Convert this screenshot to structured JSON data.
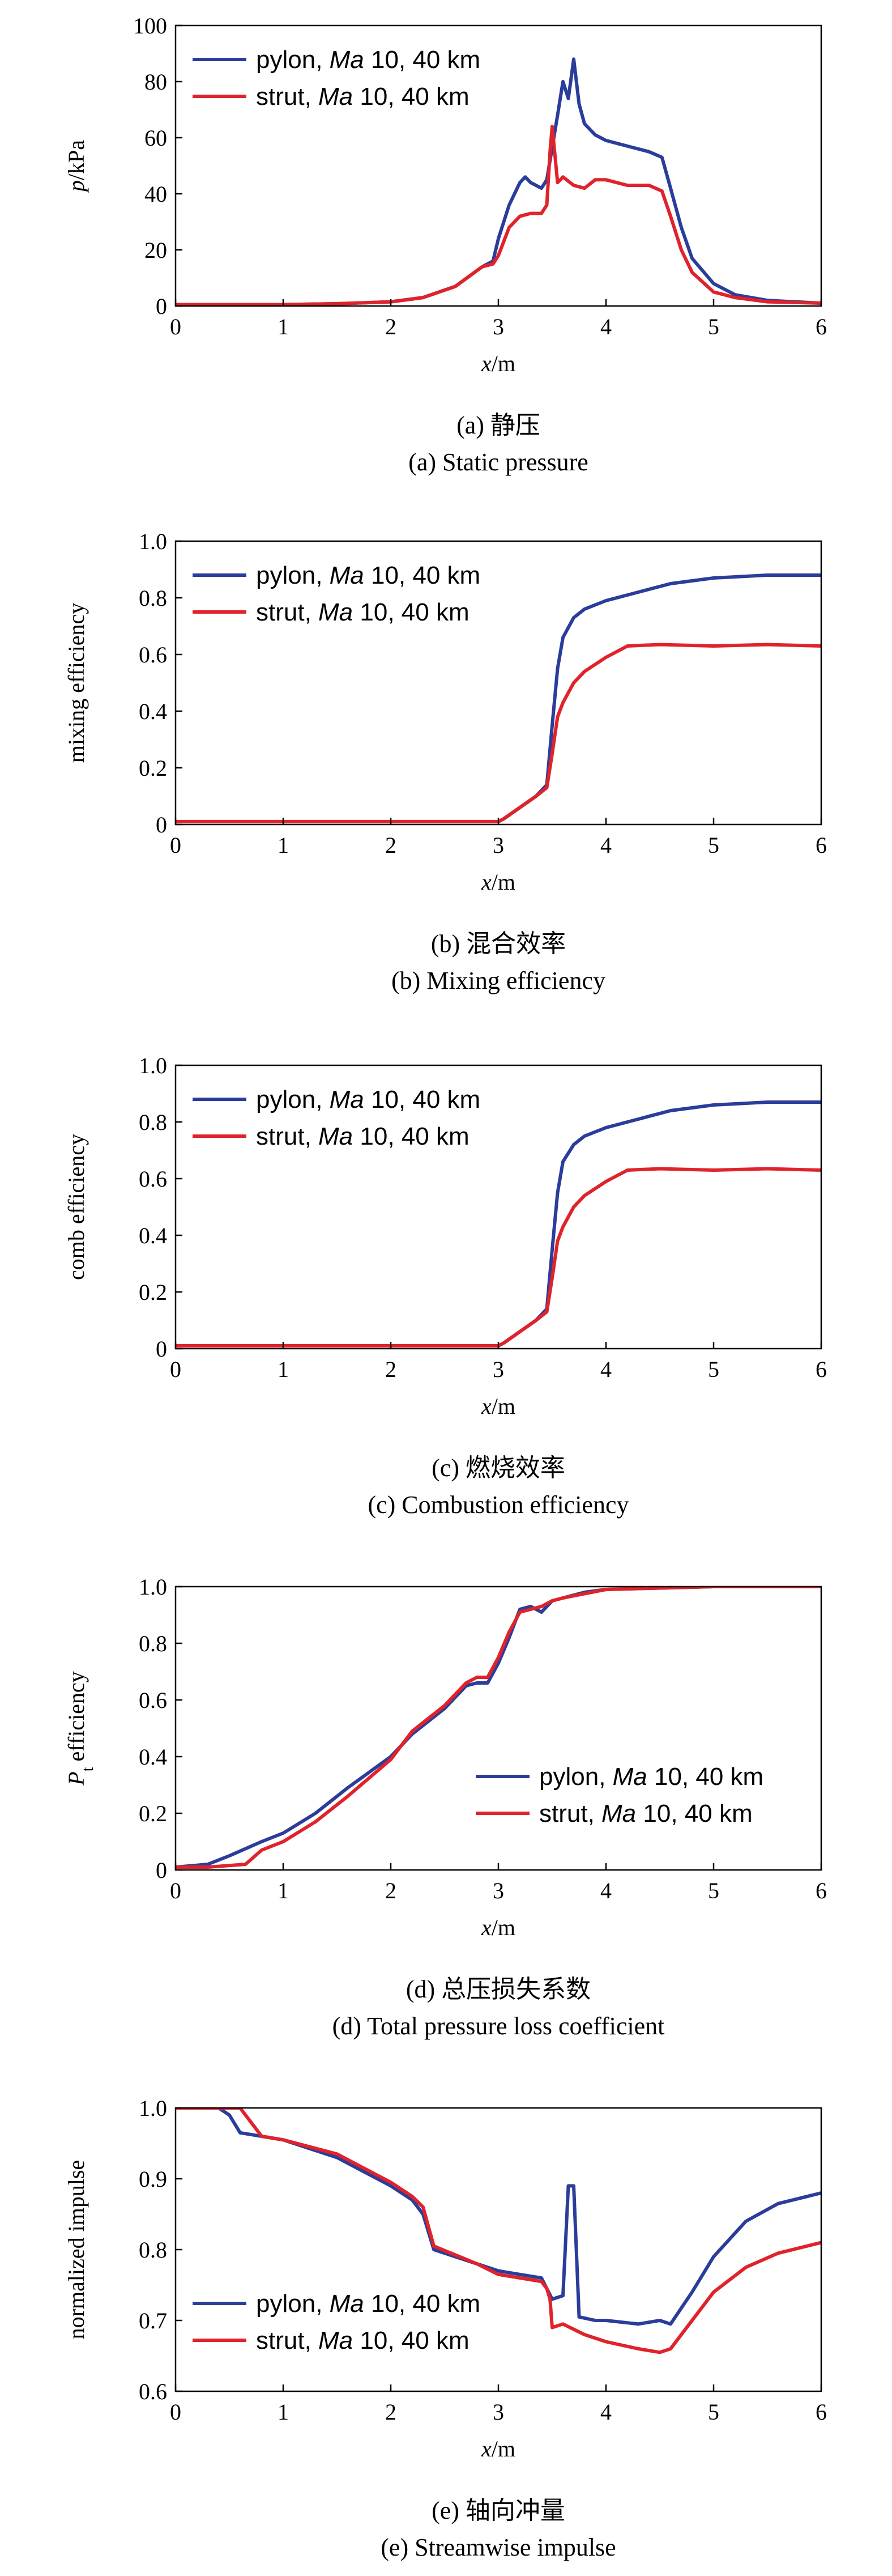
{
  "figure": {
    "series_style": {
      "pylon": {
        "label": "pylon, ",
        "italic": "Ma",
        "suffix": " 10, 40 km",
        "color": "#2b3d9a"
      },
      "strut": {
        "label": "strut, ",
        "italic": "Ma",
        "suffix": " 10, 40 km",
        "color": "#e0232b"
      }
    }
  },
  "chart_data": [
    {
      "type": "line",
      "panel": "a",
      "ylabel_italic": "p",
      "ylabel_rest": "/kPa",
      "xlabel_italic": "x",
      "xlabel_rest": "/m",
      "xlim": [
        0,
        6
      ],
      "ylim": [
        0,
        100
      ],
      "x_ticks": [
        "0",
        "1",
        "2",
        "3",
        "4",
        "5",
        "6"
      ],
      "y_ticks": [
        "0",
        "20",
        "40",
        "60",
        "80",
        "100"
      ],
      "caption_cn": "(a) 静压",
      "caption_en": "(a) Static pressure",
      "legend_position": "top-left",
      "series": [
        {
          "name": "pylon, Ma 10, 40 km",
          "x": [
            0,
            1,
            1.5,
            2,
            2.3,
            2.6,
            2.85,
            2.95,
            3.0,
            3.1,
            3.2,
            3.25,
            3.3,
            3.4,
            3.45,
            3.55,
            3.6,
            3.65,
            3.7,
            3.75,
            3.8,
            3.9,
            4.0,
            4.2,
            4.4,
            4.52,
            4.6,
            4.7,
            4.8,
            5.0,
            5.2,
            5.5,
            6.0
          ],
          "y": [
            0.5,
            0.5,
            0.8,
            1.5,
            3,
            7,
            14,
            16,
            24,
            36,
            44,
            46,
            44,
            42,
            45,
            68,
            80,
            74,
            88,
            72,
            65,
            61,
            59,
            57,
            55,
            53,
            42,
            28,
            17,
            8,
            4,
            2,
            1
          ]
        },
        {
          "name": "strut, Ma 10, 40 km",
          "x": [
            0,
            1,
            1.5,
            2,
            2.3,
            2.6,
            2.85,
            2.95,
            3.0,
            3.1,
            3.2,
            3.3,
            3.4,
            3.45,
            3.48,
            3.5,
            3.55,
            3.6,
            3.7,
            3.8,
            3.9,
            4.0,
            4.2,
            4.4,
            4.52,
            4.6,
            4.7,
            4.8,
            5.0,
            5.2,
            5.5,
            6.0
          ],
          "y": [
            0.5,
            0.5,
            0.8,
            1.5,
            3,
            7,
            14,
            15,
            18,
            28,
            32,
            33,
            33,
            36,
            55,
            64,
            44,
            46,
            43,
            42,
            45,
            45,
            43,
            43,
            41,
            32,
            20,
            12,
            5,
            3,
            1.5,
            1
          ]
        }
      ]
    },
    {
      "type": "line",
      "panel": "b",
      "ylabel_italic": "",
      "ylabel_rest": "mixing efficiency",
      "xlabel_italic": "x",
      "xlabel_rest": "/m",
      "xlim": [
        0,
        6
      ],
      "ylim": [
        0,
        1.0
      ],
      "x_ticks": [
        "0",
        "1",
        "2",
        "3",
        "4",
        "5",
        "6"
      ],
      "y_ticks": [
        "0",
        "0.2",
        "0.4",
        "0.6",
        "0.8",
        "1.0"
      ],
      "caption_cn": "(b) 混合效率",
      "caption_en": "(b) Mixing efficiency",
      "legend_position": "top-left",
      "series": [
        {
          "name": "pylon, Ma 10, 40 km",
          "x": [
            0,
            3.0,
            3.05,
            3.2,
            3.35,
            3.45,
            3.5,
            3.55,
            3.6,
            3.7,
            3.8,
            4.0,
            4.3,
            4.6,
            5.0,
            5.5,
            6.0
          ],
          "y": [
            0.01,
            0.01,
            0.02,
            0.06,
            0.1,
            0.14,
            0.35,
            0.55,
            0.66,
            0.73,
            0.76,
            0.79,
            0.82,
            0.85,
            0.87,
            0.88,
            0.88
          ]
        },
        {
          "name": "strut, Ma 10, 40 km",
          "x": [
            0,
            3.0,
            3.05,
            3.2,
            3.35,
            3.45,
            3.5,
            3.55,
            3.6,
            3.7,
            3.8,
            4.0,
            4.2,
            4.5,
            5.0,
            5.5,
            6.0
          ],
          "y": [
            0.01,
            0.01,
            0.02,
            0.06,
            0.1,
            0.13,
            0.25,
            0.38,
            0.43,
            0.5,
            0.54,
            0.59,
            0.63,
            0.635,
            0.63,
            0.635,
            0.63
          ]
        }
      ]
    },
    {
      "type": "line",
      "panel": "c",
      "ylabel_italic": "",
      "ylabel_rest": "comb efficiency",
      "xlabel_italic": "x",
      "xlabel_rest": "/m",
      "xlim": [
        0,
        6
      ],
      "ylim": [
        0,
        1.0
      ],
      "x_ticks": [
        "0",
        "1",
        "2",
        "3",
        "4",
        "5",
        "6"
      ],
      "y_ticks": [
        "0",
        "0.2",
        "0.4",
        "0.6",
        "0.8",
        "1.0"
      ],
      "caption_cn": "(c) 燃烧效率",
      "caption_en": "(c) Combustion efficiency",
      "legend_position": "top-left",
      "series": [
        {
          "name": "pylon, Ma 10, 40 km",
          "x": [
            0,
            3.0,
            3.05,
            3.2,
            3.35,
            3.45,
            3.5,
            3.55,
            3.6,
            3.7,
            3.8,
            4.0,
            4.3,
            4.6,
            5.0,
            5.5,
            6.0
          ],
          "y": [
            0.01,
            0.01,
            0.02,
            0.06,
            0.1,
            0.14,
            0.35,
            0.55,
            0.66,
            0.72,
            0.75,
            0.78,
            0.81,
            0.84,
            0.86,
            0.87,
            0.87
          ]
        },
        {
          "name": "strut, Ma 10, 40 km",
          "x": [
            0,
            3.0,
            3.05,
            3.2,
            3.35,
            3.45,
            3.5,
            3.55,
            3.6,
            3.7,
            3.8,
            4.0,
            4.2,
            4.5,
            5.0,
            5.5,
            6.0
          ],
          "y": [
            0.01,
            0.01,
            0.02,
            0.06,
            0.1,
            0.13,
            0.25,
            0.38,
            0.43,
            0.5,
            0.54,
            0.59,
            0.63,
            0.635,
            0.63,
            0.635,
            0.63
          ]
        }
      ]
    },
    {
      "type": "line",
      "panel": "d",
      "ylabel_italic": "P",
      "ylabel_sub": "t",
      "ylabel_rest": " efficiency",
      "xlabel_italic": "x",
      "xlabel_rest": "/m",
      "xlim": [
        0,
        6
      ],
      "ylim": [
        0,
        1.0
      ],
      "x_ticks": [
        "0",
        "1",
        "2",
        "3",
        "4",
        "5",
        "6"
      ],
      "y_ticks": [
        "0",
        "0.2",
        "0.4",
        "0.6",
        "0.8",
        "1.0"
      ],
      "caption_cn": "(d) 总压损失系数",
      "caption_en": "(d) Total pressure loss coefficient",
      "legend_position": "bottom-right",
      "series": [
        {
          "name": "pylon, Ma 10, 40 km",
          "x": [
            0,
            0.3,
            0.5,
            0.8,
            1.0,
            1.3,
            1.6,
            2.0,
            2.2,
            2.5,
            2.7,
            2.8,
            2.9,
            3.0,
            3.1,
            3.2,
            3.3,
            3.4,
            3.5,
            3.6,
            3.8,
            4.0,
            4.5,
            5.0,
            6.0
          ],
          "y": [
            0.01,
            0.02,
            0.05,
            0.1,
            0.13,
            0.2,
            0.29,
            0.4,
            0.48,
            0.57,
            0.65,
            0.66,
            0.66,
            0.73,
            0.82,
            0.92,
            0.93,
            0.91,
            0.95,
            0.96,
            0.98,
            0.99,
            0.995,
            1.0,
            1.0
          ]
        },
        {
          "name": "strut, Ma 10, 40 km",
          "x": [
            0,
            0.3,
            0.65,
            0.8,
            1.0,
            1.3,
            1.6,
            2.0,
            2.2,
            2.5,
            2.7,
            2.8,
            2.9,
            3.0,
            3.1,
            3.2,
            3.3,
            3.4,
            3.5,
            3.6,
            3.8,
            4.0,
            4.5,
            5.0,
            6.0
          ],
          "y": [
            0.01,
            0.01,
            0.02,
            0.07,
            0.1,
            0.17,
            0.26,
            0.39,
            0.49,
            0.58,
            0.66,
            0.68,
            0.68,
            0.75,
            0.84,
            0.91,
            0.92,
            0.93,
            0.95,
            0.96,
            0.975,
            0.99,
            0.995,
            1.0,
            1.0
          ]
        }
      ]
    },
    {
      "type": "line",
      "panel": "e",
      "ylabel_italic": "",
      "ylabel_rest": "normalized impulse",
      "xlabel_italic": "x",
      "xlabel_rest": "/m",
      "xlim": [
        0,
        6
      ],
      "ylim": [
        0.6,
        1.0
      ],
      "x_ticks": [
        "0",
        "1",
        "2",
        "3",
        "4",
        "5",
        "6"
      ],
      "y_ticks": [
        "0.6",
        "0.7",
        "0.8",
        "0.9",
        "1.0"
      ],
      "caption_cn": "(e) 轴向冲量",
      "caption_en": "(e) Streamwise impulse",
      "legend_position": "bottom-left",
      "series": [
        {
          "name": "pylon, Ma 10, 40 km",
          "x": [
            0,
            0.4,
            0.5,
            0.6,
            1.0,
            1.5,
            2.0,
            2.2,
            2.3,
            2.4,
            2.8,
            3.0,
            3.2,
            3.4,
            3.45,
            3.5,
            3.6,
            3.65,
            3.7,
            3.75,
            3.9,
            4.0,
            4.3,
            4.5,
            4.6,
            4.8,
            5.0,
            5.3,
            5.6,
            6.0
          ],
          "y": [
            1.0,
            1.0,
            0.99,
            0.965,
            0.955,
            0.93,
            0.89,
            0.87,
            0.85,
            0.8,
            0.78,
            0.77,
            0.765,
            0.76,
            0.745,
            0.73,
            0.735,
            0.89,
            0.89,
            0.705,
            0.7,
            0.7,
            0.695,
            0.7,
            0.695,
            0.74,
            0.79,
            0.84,
            0.865,
            0.88
          ]
        },
        {
          "name": "strut, Ma 10, 40 km",
          "x": [
            0,
            0.6,
            0.7,
            0.8,
            1.0,
            1.5,
            2.0,
            2.2,
            2.3,
            2.4,
            2.8,
            3.0,
            3.2,
            3.4,
            3.45,
            3.48,
            3.5,
            3.6,
            3.8,
            4.0,
            4.3,
            4.5,
            4.6,
            4.8,
            5.0,
            5.3,
            5.6,
            6.0
          ],
          "y": [
            1.0,
            1.0,
            0.98,
            0.96,
            0.955,
            0.935,
            0.895,
            0.875,
            0.86,
            0.805,
            0.78,
            0.765,
            0.76,
            0.755,
            0.745,
            0.73,
            0.69,
            0.695,
            0.68,
            0.67,
            0.66,
            0.655,
            0.66,
            0.7,
            0.74,
            0.775,
            0.795,
            0.81
          ]
        }
      ]
    }
  ]
}
